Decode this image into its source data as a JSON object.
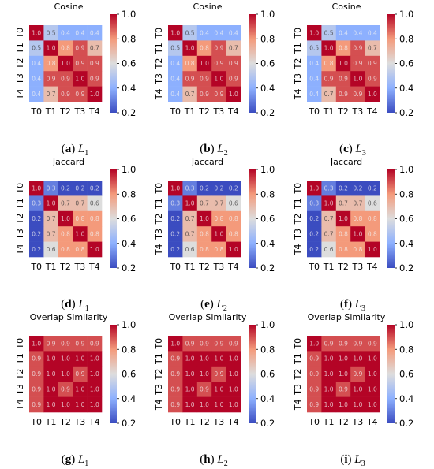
{
  "colors": {
    "low": "#3b4cc0",
    "mid": "#dddddd",
    "high": "#b40426"
  },
  "chart_data": [
    {
      "type": "heatmap",
      "title": "Cosine",
      "caption_letter": "(a)",
      "caption_var": "L",
      "caption_sub": "1",
      "x_categories": [
        "T0",
        "T1",
        "T2",
        "T3",
        "T4"
      ],
      "y_categories": [
        "T0",
        "T1",
        "T2",
        "T3",
        "T4"
      ],
      "values": [
        [
          1.0,
          0.5,
          0.4,
          0.4,
          0.4
        ],
        [
          0.5,
          1.0,
          0.8,
          0.9,
          0.7
        ],
        [
          0.4,
          0.8,
          1.0,
          0.9,
          0.9
        ],
        [
          0.4,
          0.9,
          0.9,
          1.0,
          0.9
        ],
        [
          0.4,
          0.7,
          0.9,
          0.9,
          1.0
        ]
      ],
      "colorbar": {
        "range": [
          0.2,
          1.0
        ],
        "ticks": [
          "1.0",
          "0.8",
          "0.6",
          "0.4",
          "0.2"
        ],
        "colormap": "coolwarm"
      }
    },
    {
      "type": "heatmap",
      "title": "Cosine",
      "caption_letter": "(b)",
      "caption_var": "L",
      "caption_sub": "2",
      "x_categories": [
        "T0",
        "T1",
        "T2",
        "T3",
        "T4"
      ],
      "y_categories": [
        "T0",
        "T1",
        "T2",
        "T3",
        "T4"
      ],
      "values": [
        [
          1.0,
          0.5,
          0.4,
          0.4,
          0.4
        ],
        [
          0.5,
          1.0,
          0.8,
          0.9,
          0.7
        ],
        [
          0.4,
          0.8,
          1.0,
          0.9,
          0.9
        ],
        [
          0.4,
          0.9,
          0.9,
          1.0,
          0.9
        ],
        [
          0.4,
          0.7,
          0.9,
          0.9,
          1.0
        ]
      ],
      "colorbar": {
        "range": [
          0.2,
          1.0
        ],
        "ticks": [
          "1.0",
          "0.8",
          "0.6",
          "0.4",
          "0.2"
        ],
        "colormap": "coolwarm"
      }
    },
    {
      "type": "heatmap",
      "title": "Cosine",
      "caption_letter": "(c)",
      "caption_var": "L",
      "caption_sub": "3",
      "x_categories": [
        "T0",
        "T1",
        "T2",
        "T3",
        "T4"
      ],
      "y_categories": [
        "T0",
        "T1",
        "T2",
        "T3",
        "T4"
      ],
      "values": [
        [
          1.0,
          0.5,
          0.4,
          0.4,
          0.4
        ],
        [
          0.5,
          1.0,
          0.8,
          0.9,
          0.7
        ],
        [
          0.4,
          0.8,
          1.0,
          0.9,
          0.9
        ],
        [
          0.4,
          0.9,
          0.9,
          1.0,
          0.9
        ],
        [
          0.4,
          0.7,
          0.9,
          0.9,
          1.0
        ]
      ],
      "colorbar": {
        "range": [
          0.2,
          1.0
        ],
        "ticks": [
          "1.0",
          "0.8",
          "0.6",
          "0.4",
          "0.2"
        ],
        "colormap": "coolwarm"
      }
    },
    {
      "type": "heatmap",
      "title": "Jaccard",
      "caption_letter": "(d)",
      "caption_var": "L",
      "caption_sub": "1",
      "x_categories": [
        "T0",
        "T1",
        "T2",
        "T3",
        "T4"
      ],
      "y_categories": [
        "T0",
        "T1",
        "T2",
        "T3",
        "T4"
      ],
      "values": [
        [
          1.0,
          0.3,
          0.2,
          0.2,
          0.2
        ],
        [
          0.3,
          1.0,
          0.7,
          0.7,
          0.6
        ],
        [
          0.2,
          0.7,
          1.0,
          0.8,
          0.8
        ],
        [
          0.2,
          0.7,
          0.8,
          1.0,
          0.8
        ],
        [
          0.2,
          0.6,
          0.8,
          0.8,
          1.0
        ]
      ],
      "colorbar": {
        "range": [
          0.2,
          1.0
        ],
        "ticks": [
          "1.0",
          "0.8",
          "0.6",
          "0.4",
          "0.2"
        ],
        "colormap": "coolwarm"
      }
    },
    {
      "type": "heatmap",
      "title": "Jaccard",
      "caption_letter": "(e)",
      "caption_var": "L",
      "caption_sub": "2",
      "x_categories": [
        "T0",
        "T1",
        "T2",
        "T3",
        "T4"
      ],
      "y_categories": [
        "T0",
        "T1",
        "T2",
        "T3",
        "T4"
      ],
      "values": [
        [
          1.0,
          0.3,
          0.2,
          0.2,
          0.2
        ],
        [
          0.3,
          1.0,
          0.7,
          0.7,
          0.6
        ],
        [
          0.2,
          0.7,
          1.0,
          0.8,
          0.8
        ],
        [
          0.2,
          0.7,
          0.8,
          1.0,
          0.8
        ],
        [
          0.2,
          0.6,
          0.8,
          0.8,
          1.0
        ]
      ],
      "colorbar": {
        "range": [
          0.2,
          1.0
        ],
        "ticks": [
          "1.0",
          "0.8",
          "0.6",
          "0.4",
          "0.2"
        ],
        "colormap": "coolwarm"
      }
    },
    {
      "type": "heatmap",
      "title": "Jaccard",
      "caption_letter": "(f)",
      "caption_var": "L",
      "caption_sub": "3",
      "x_categories": [
        "T0",
        "T1",
        "T2",
        "T3",
        "T4"
      ],
      "y_categories": [
        "T0",
        "T1",
        "T2",
        "T3",
        "T4"
      ],
      "values": [
        [
          1.0,
          0.3,
          0.2,
          0.2,
          0.2
        ],
        [
          0.3,
          1.0,
          0.7,
          0.7,
          0.6
        ],
        [
          0.2,
          0.7,
          1.0,
          0.8,
          0.8
        ],
        [
          0.2,
          0.7,
          0.8,
          1.0,
          0.8
        ],
        [
          0.2,
          0.6,
          0.8,
          0.8,
          1.0
        ]
      ],
      "colorbar": {
        "range": [
          0.2,
          1.0
        ],
        "ticks": [
          "1.0",
          "0.8",
          "0.6",
          "0.4",
          "0.2"
        ],
        "colormap": "coolwarm"
      }
    },
    {
      "type": "heatmap",
      "title": "Overlap Similarity",
      "caption_letter": "(g)",
      "caption_var": "L",
      "caption_sub": "1",
      "x_categories": [
        "T0",
        "T1",
        "T2",
        "T3",
        "T4"
      ],
      "y_categories": [
        "T0",
        "T1",
        "T2",
        "T3",
        "T4"
      ],
      "values": [
        [
          1.0,
          0.9,
          0.9,
          0.9,
          0.9
        ],
        [
          0.9,
          1.0,
          1.0,
          1.0,
          1.0
        ],
        [
          0.9,
          1.0,
          1.0,
          0.9,
          1.0
        ],
        [
          0.9,
          1.0,
          0.9,
          1.0,
          1.0
        ],
        [
          0.9,
          1.0,
          1.0,
          1.0,
          1.0
        ]
      ],
      "colorbar": {
        "range": [
          0.2,
          1.0
        ],
        "ticks": [
          "1.0",
          "0.8",
          "0.6",
          "0.4",
          "0.2"
        ],
        "colormap": "coolwarm"
      }
    },
    {
      "type": "heatmap",
      "title": "Overlap Similarity",
      "caption_letter": "(h)",
      "caption_var": "L",
      "caption_sub": "2",
      "x_categories": [
        "T0",
        "T1",
        "T2",
        "T3",
        "T4"
      ],
      "y_categories": [
        "T0",
        "T1",
        "T2",
        "T3",
        "T4"
      ],
      "values": [
        [
          1.0,
          0.9,
          0.9,
          0.9,
          0.9
        ],
        [
          0.9,
          1.0,
          1.0,
          1.0,
          1.0
        ],
        [
          0.9,
          1.0,
          1.0,
          0.9,
          1.0
        ],
        [
          0.9,
          1.0,
          0.9,
          1.0,
          1.0
        ],
        [
          0.9,
          1.0,
          1.0,
          1.0,
          1.0
        ]
      ],
      "colorbar": {
        "range": [
          0.2,
          1.0
        ],
        "ticks": [
          "1.0",
          "0.8",
          "0.6",
          "0.4",
          "0.2"
        ],
        "colormap": "coolwarm"
      }
    },
    {
      "type": "heatmap",
      "title": "Overlap Similarity",
      "caption_letter": "(i)",
      "caption_var": "L",
      "caption_sub": "3",
      "x_categories": [
        "T0",
        "T1",
        "T2",
        "T3",
        "T4"
      ],
      "y_categories": [
        "T0",
        "T1",
        "T2",
        "T3",
        "T4"
      ],
      "values": [
        [
          1.0,
          0.9,
          0.9,
          0.9,
          0.9
        ],
        [
          0.9,
          1.0,
          1.0,
          1.0,
          1.0
        ],
        [
          0.9,
          1.0,
          1.0,
          0.9,
          1.0
        ],
        [
          0.9,
          1.0,
          0.9,
          1.0,
          1.0
        ],
        [
          0.9,
          1.0,
          1.0,
          1.0,
          1.0
        ]
      ],
      "colorbar": {
        "range": [
          0.2,
          1.0
        ],
        "ticks": [
          "1.0",
          "0.8",
          "0.6",
          "0.4",
          "0.2"
        ],
        "colormap": "coolwarm"
      }
    }
  ]
}
